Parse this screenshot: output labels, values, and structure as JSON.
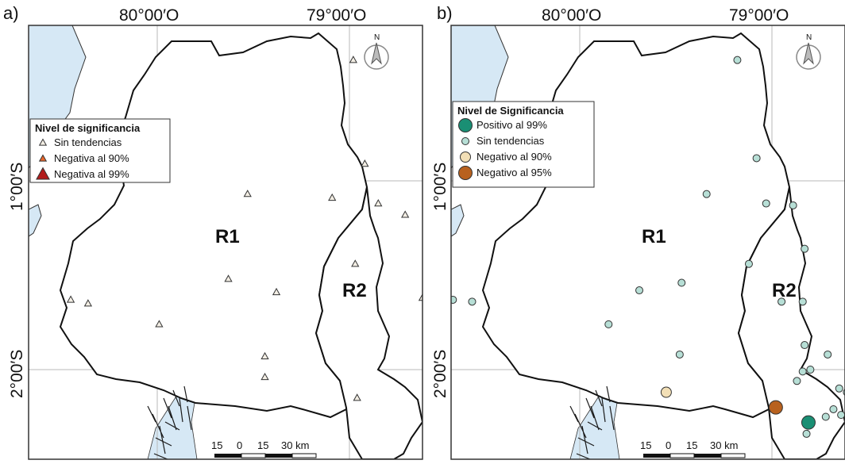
{
  "colors": {
    "sea": "#d6e8f5",
    "land": "#ffffff",
    "border": "#111111",
    "grid": "#b8b8b8",
    "frame": "#333333",
    "mangrove": "#1a1a1a"
  },
  "coordinates": {
    "lon_80": "80°00′O",
    "lon_79": "79°00′O",
    "lat_1": "1°00′S",
    "lat_2": "2°00′S"
  },
  "scale_bar": {
    "labels": [
      "15",
      "0",
      "15",
      "30 km"
    ]
  },
  "north_arrow": {
    "label": "N",
    "icon": "north-arrow-icon"
  },
  "panels": [
    {
      "id": "a",
      "label": "a)",
      "regions": {
        "r1": "R1",
        "r2": "R2"
      },
      "legend": {
        "title": "Nivel de significancia",
        "items": [
          {
            "label": "Sin tendencias",
            "shape": "triangle",
            "color": "#f3eee4",
            "size": "small"
          },
          {
            "label": "Negativa al 90%",
            "shape": "triangle",
            "color": "#e8662a",
            "size": "small"
          },
          {
            "label": "Negativa al 99%",
            "shape": "triangle",
            "color": "#b21c1c",
            "size": "large"
          }
        ]
      },
      "stations": [
        {
          "class": 0,
          "lon": -79.43,
          "lat": -0.12
        },
        {
          "class": 0,
          "lon": -79.24,
          "lat": -0.12
        },
        {
          "class": 2,
          "lon": -78.79,
          "lat": -0.12
        },
        {
          "class": 0,
          "lon": -78.98,
          "lat": -0.36
        },
        {
          "class": 0,
          "lon": -78.92,
          "lat": -0.91
        },
        {
          "class": 0,
          "lon": -79.09,
          "lat": -1.09
        },
        {
          "class": 0,
          "lon": -78.85,
          "lat": -1.12
        },
        {
          "class": 0,
          "lon": -79.53,
          "lat": -1.07
        },
        {
          "class": 0,
          "lon": -78.71,
          "lat": -1.18
        },
        {
          "class": 0,
          "lon": -78.58,
          "lat": -1.41
        },
        {
          "class": 0,
          "lon": -78.97,
          "lat": -1.44
        },
        {
          "class": 0,
          "lon": -79.63,
          "lat": -1.52
        },
        {
          "class": 0,
          "lon": -79.38,
          "lat": -1.59
        },
        {
          "class": 0,
          "lon": -78.62,
          "lat": -1.62
        },
        {
          "class": 0,
          "lon": -80.45,
          "lat": -1.63
        },
        {
          "class": 0,
          "lon": -80.36,
          "lat": -1.65
        },
        {
          "class": 0,
          "lon": -78.56,
          "lat": -1.77
        },
        {
          "class": 0,
          "lon": -79.99,
          "lat": -1.76
        },
        {
          "class": 0,
          "lon": -78.54,
          "lat": -1.87
        },
        {
          "class": 0,
          "lon": -78.35,
          "lat": -1.91
        },
        {
          "class": 0,
          "lon": -79.44,
          "lat": -1.93
        },
        {
          "class": 0,
          "lon": -78.96,
          "lat": -2.15
        },
        {
          "class": 0,
          "lon": -78.42,
          "lat": -2.11
        },
        {
          "class": 0,
          "lon": -78.41,
          "lat": -2.18
        },
        {
          "class": 0,
          "lon": -79.44,
          "lat": -2.04
        },
        {
          "class": 0,
          "lon": -78.47,
          "lat": -2.0
        },
        {
          "class": 0,
          "lon": -78.29,
          "lat": -2.16
        },
        {
          "class": 1,
          "lon": -78.39,
          "lat": -2.24
        },
        {
          "class": 0,
          "lon": -78.38,
          "lat": -2.28
        },
        {
          "class": 0,
          "lon": -78.57,
          "lat": -2.23
        },
        {
          "class": 0,
          "lon": -78.36,
          "lat": -2.31
        },
        {
          "class": 0,
          "lon": -78.58,
          "lat": -2.34
        }
      ]
    },
    {
      "id": "b",
      "label": "b)",
      "regions": {
        "r1": "R1",
        "r2": "R2"
      },
      "legend": {
        "title": "Nivel de Significancia",
        "items": [
          {
            "label": "Positivo al 99%",
            "shape": "circle",
            "color": "#1a8f74",
            "size": "large"
          },
          {
            "label": "Sin tendencias",
            "shape": "circle",
            "color": "#b7dfd6",
            "size": "small"
          },
          {
            "label": "Negativo al 90%",
            "shape": "circle",
            "color": "#f2dfb6",
            "size": "medium"
          },
          {
            "label": "Negativo al 95%",
            "shape": "circle",
            "color": "#b8611e",
            "size": "large"
          }
        ]
      },
      "stations": [
        {
          "class": 1,
          "lon": -79.45,
          "lat": -0.1
        },
        {
          "class": 1,
          "lon": -79.25,
          "lat": -0.09
        },
        {
          "class": 1,
          "lon": -79.05,
          "lat": -0.07
        },
        {
          "class": 1,
          "lon": -79.18,
          "lat": -0.36
        },
        {
          "class": 1,
          "lon": -79.08,
          "lat": -0.88
        },
        {
          "class": 1,
          "lon": -79.34,
          "lat": -1.07
        },
        {
          "class": 1,
          "lon": -79.03,
          "lat": -1.12
        },
        {
          "class": 1,
          "lon": -78.89,
          "lat": -1.13
        },
        {
          "class": 1,
          "lon": -78.83,
          "lat": -1.36
        },
        {
          "class": 1,
          "lon": -79.12,
          "lat": -1.44
        },
        {
          "class": 1,
          "lon": -79.47,
          "lat": -1.54
        },
        {
          "class": 1,
          "lon": -79.69,
          "lat": -1.58
        },
        {
          "class": 1,
          "lon": -80.66,
          "lat": -1.63
        },
        {
          "class": 1,
          "lon": -80.56,
          "lat": -1.64
        },
        {
          "class": 1,
          "lon": -78.95,
          "lat": -1.64
        },
        {
          "class": 1,
          "lon": -78.84,
          "lat": -1.64
        },
        {
          "class": 1,
          "lon": -79.85,
          "lat": -1.76
        },
        {
          "class": 1,
          "lon": -78.83,
          "lat": -1.87
        },
        {
          "class": 1,
          "lon": -78.71,
          "lat": -1.92
        },
        {
          "class": 1,
          "lon": -79.48,
          "lat": -1.92
        },
        {
          "class": 1,
          "lon": -78.87,
          "lat": -2.06
        },
        {
          "class": 1,
          "lon": -78.84,
          "lat": -2.01
        },
        {
          "class": 1,
          "lon": -78.8,
          "lat": -2.0
        },
        {
          "class": 1,
          "lon": -78.65,
          "lat": -2.1
        },
        {
          "class": 1,
          "lon": -78.61,
          "lat": -2.12
        },
        {
          "class": 2,
          "lon": -79.55,
          "lat": -2.12
        },
        {
          "class": 3,
          "lon": -78.98,
          "lat": -2.2
        },
        {
          "class": 0,
          "lon": -78.81,
          "lat": -2.28
        },
        {
          "class": 1,
          "lon": -78.68,
          "lat": -2.21
        },
        {
          "class": 1,
          "lon": -78.64,
          "lat": -2.24
        },
        {
          "class": 1,
          "lon": -78.72,
          "lat": -2.25
        },
        {
          "class": 1,
          "lon": -78.82,
          "lat": -2.34
        }
      ]
    }
  ]
}
